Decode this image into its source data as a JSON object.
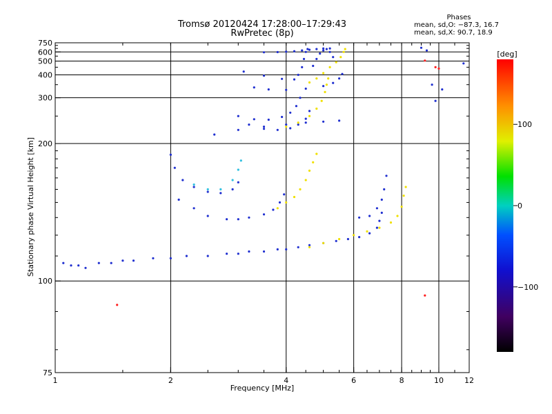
{
  "header": {
    "title_line1": "Tromsø 20120424 17:28:00–17:29:43",
    "title_line2": "RwPretec (8p)"
  },
  "phases": {
    "heading": "Phases",
    "line_o": "mean, sd,O: −87.3, 16.7",
    "line_x": "mean, sd,X:  90.7, 18.9"
  },
  "colorbar": {
    "unit_label": "[deg]",
    "ticks": [
      {
        "value": 100,
        "label": "100"
      },
      {
        "value": 0,
        "label": "0"
      },
      {
        "value": -100,
        "label": "−100"
      }
    ],
    "range": [
      -180,
      180
    ]
  },
  "chart_data": {
    "type": "scatter",
    "title": "Tromsø 20120424 17:28:00–17:29:43",
    "subtitle": "RwPretec (8p)",
    "xlabel": "Frequency [MHz]",
    "ylabel": "Stationary phase Virtual Height [km]",
    "x_scale": "log",
    "y_scale": "reciprocal",
    "xlim": [
      1,
      12
    ],
    "ylim": [
      75,
      750
    ],
    "grid": true,
    "xticks": [
      1,
      2,
      4,
      6,
      8,
      10,
      12
    ],
    "xtick_labels": [
      "1",
      "2",
      "4",
      "6",
      "8",
      10,
      "12"
    ],
    "xgrid": [
      2,
      4,
      6,
      8,
      10
    ],
    "yticks": [
      75,
      100,
      200,
      300,
      400,
      500,
      600,
      750
    ],
    "ytick_labels": [
      "75",
      "100",
      "200",
      "300",
      "400",
      "500",
      "600",
      "750"
    ],
    "ygrid": [
      100,
      200,
      300,
      400,
      500,
      600
    ],
    "color_encoding": "phase [deg]",
    "series": [
      {
        "color": "#2030d0",
        "points": [
          [
            1.05,
            107
          ],
          [
            1.1,
            106
          ],
          [
            1.15,
            106
          ],
          [
            1.2,
            105
          ],
          [
            1.3,
            107
          ],
          [
            1.4,
            107
          ],
          [
            1.5,
            108
          ],
          [
            1.6,
            108
          ],
          [
            1.8,
            109
          ],
          [
            2.0,
            109
          ],
          [
            2.2,
            110
          ],
          [
            2.5,
            110
          ],
          [
            2.8,
            111
          ],
          [
            3.0,
            111
          ],
          [
            3.2,
            112
          ],
          [
            3.5,
            112
          ],
          [
            3.8,
            113
          ],
          [
            4.0,
            113
          ],
          [
            4.3,
            114
          ],
          [
            4.6,
            115
          ],
          [
            5.0,
            116
          ],
          [
            5.4,
            117
          ],
          [
            5.8,
            118
          ],
          [
            6.2,
            119
          ],
          [
            6.6,
            121
          ],
          [
            6.9,
            124
          ],
          [
            7.0,
            128
          ],
          [
            7.1,
            133
          ]
        ]
      },
      {
        "color": "#2030d0",
        "points": [
          [
            2.1,
            142
          ],
          [
            2.3,
            136
          ],
          [
            2.5,
            131
          ],
          [
            2.8,
            129
          ],
          [
            3.0,
            129
          ],
          [
            3.2,
            130
          ],
          [
            3.5,
            132
          ],
          [
            3.7,
            135
          ],
          [
            3.85,
            140
          ],
          [
            3.95,
            146
          ]
        ]
      },
      {
        "color": "#2030d0",
        "points": [
          [
            2.0,
            185
          ],
          [
            2.05,
            170
          ],
          [
            2.15,
            158
          ],
          [
            2.3,
            152
          ],
          [
            2.5,
            148
          ],
          [
            2.7,
            147
          ],
          [
            2.9,
            150
          ],
          [
            3.0,
            156
          ]
        ]
      },
      {
        "color": "#2030d0",
        "points": [
          [
            3.2,
            232
          ],
          [
            3.5,
            224
          ],
          [
            3.8,
            222
          ],
          [
            4.1,
            225
          ],
          [
            4.3,
            232
          ],
          [
            4.5,
            244
          ],
          [
            4.6,
            262
          ]
        ]
      },
      {
        "color": "#2030d0",
        "points": [
          [
            3.0,
            250
          ],
          [
            3.3,
            243
          ],
          [
            3.6,
            242
          ],
          [
            3.9,
            248
          ],
          [
            4.1,
            258
          ],
          [
            4.25,
            275
          ],
          [
            4.35,
            300
          ]
        ]
      },
      {
        "color": "#2030d0",
        "points": [
          [
            2.6,
            214
          ],
          [
            3.0,
            222
          ],
          [
            3.5,
            228
          ],
          [
            4.0,
            232
          ],
          [
            4.5,
            236
          ],
          [
            5.0,
            238
          ],
          [
            5.5,
            240
          ]
        ]
      },
      {
        "color": "#2030d0",
        "points": [
          [
            3.3,
            338
          ],
          [
            3.6,
            330
          ],
          [
            4.0,
            328
          ],
          [
            4.5,
            333
          ],
          [
            5.0,
            344
          ],
          [
            5.3,
            358
          ],
          [
            5.5,
            380
          ],
          [
            5.6,
            405
          ]
        ]
      },
      {
        "color": "#2030d0",
        "points": [
          [
            3.1,
            420
          ],
          [
            3.5,
            395
          ],
          [
            3.9,
            378
          ],
          [
            4.2,
            375
          ],
          [
            4.3,
            400
          ],
          [
            4.4,
            450
          ],
          [
            4.45,
            520
          ],
          [
            4.5,
            600
          ],
          [
            4.55,
            640
          ]
        ]
      },
      {
        "color": "#2030d0",
        "points": [
          [
            3.5,
            595
          ],
          [
            3.8,
            598
          ],
          [
            4.0,
            603
          ],
          [
            4.2,
            610
          ],
          [
            4.4,
            620
          ],
          [
            4.6,
            630
          ],
          [
            4.8,
            640
          ],
          [
            5.0,
            650
          ],
          [
            5.2,
            650
          ]
        ]
      },
      {
        "color": "#2030d0",
        "points": [
          [
            4.7,
            460
          ],
          [
            4.8,
            520
          ],
          [
            4.9,
            580
          ],
          [
            5.0,
            620
          ],
          [
            5.1,
            640
          ],
          [
            5.2,
            600
          ],
          [
            5.3,
            540
          ]
        ]
      },
      {
        "color": "#f0e000",
        "points": [
          [
            4.0,
            228
          ],
          [
            4.3,
            236
          ],
          [
            4.6,
            250
          ],
          [
            4.8,
            268
          ],
          [
            4.95,
            290
          ],
          [
            5.05,
            320
          ],
          [
            5.1,
            350
          ],
          [
            5.15,
            380
          ]
        ]
      },
      {
        "color": "#f0e000",
        "points": [
          [
            4.6,
            360
          ],
          [
            4.8,
            380
          ],
          [
            5.0,
            410
          ],
          [
            5.2,
            450
          ],
          [
            5.4,
            490
          ],
          [
            5.55,
            540
          ],
          [
            5.65,
            600
          ],
          [
            5.7,
            640
          ]
        ]
      },
      {
        "color": "#f0e000",
        "points": [
          [
            3.8,
            136
          ],
          [
            4.0,
            140
          ],
          [
            4.2,
            144
          ],
          [
            4.35,
            150
          ],
          [
            4.5,
            158
          ],
          [
            4.6,
            167
          ],
          [
            4.7,
            176
          ],
          [
            4.8,
            186
          ]
        ]
      },
      {
        "color": "#f0e000",
        "points": [
          [
            4.6,
            114
          ],
          [
            5.0,
            116
          ],
          [
            5.5,
            118
          ],
          [
            6.0,
            120
          ],
          [
            6.5,
            122
          ],
          [
            7.0,
            124
          ],
          [
            7.5,
            127
          ],
          [
            7.8,
            131
          ],
          [
            8.0,
            137
          ],
          [
            8.1,
            145
          ],
          [
            8.2,
            152
          ]
        ]
      },
      {
        "color": "#30c0e0",
        "points": [
          [
            2.3,
            154
          ],
          [
            2.5,
            150
          ],
          [
            2.7,
            150
          ],
          [
            2.9,
            158
          ],
          [
            3.0,
            168
          ],
          [
            3.05,
            178
          ]
        ]
      },
      {
        "color": "#2030d0",
        "points": [
          [
            6.2,
            130
          ],
          [
            6.6,
            131
          ],
          [
            6.9,
            136
          ],
          [
            7.1,
            142
          ],
          [
            7.2,
            150
          ],
          [
            7.3,
            162
          ]
        ]
      },
      {
        "color": "#ff2020",
        "points": [
          [
            9.2,
            505
          ],
          [
            9.8,
            450
          ],
          [
            10.0,
            440
          ],
          [
            9.2,
            95
          ],
          [
            1.45,
            92
          ]
        ]
      },
      {
        "color": "#2030d0",
        "points": [
          [
            9.0,
            660
          ],
          [
            9.3,
            620
          ],
          [
            9.6,
            350
          ],
          [
            9.8,
            290
          ],
          [
            10.2,
            330
          ],
          [
            11.6,
            480
          ]
        ]
      }
    ]
  }
}
